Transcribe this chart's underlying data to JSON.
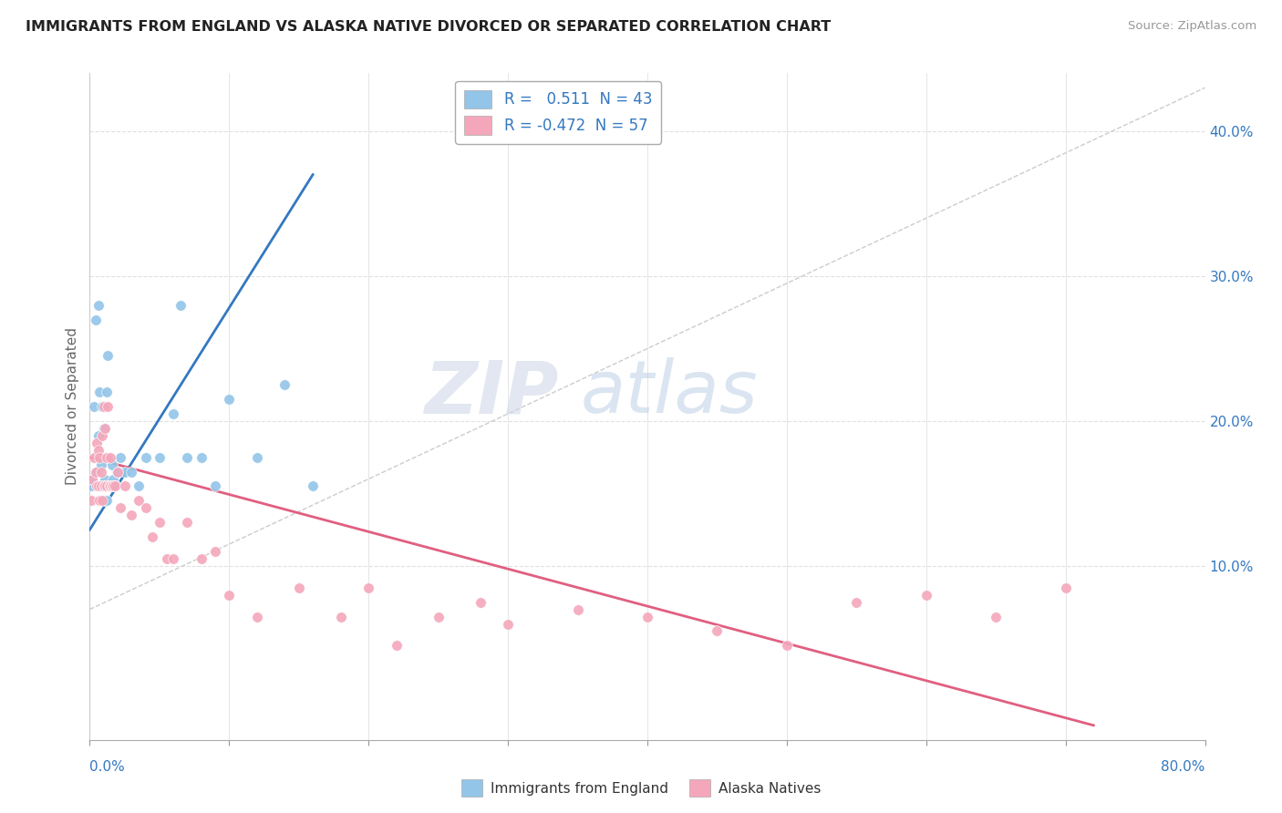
{
  "title": "IMMIGRANTS FROM ENGLAND VS ALASKA NATIVE DIVORCED OR SEPARATED CORRELATION CHART",
  "source": "Source: ZipAtlas.com",
  "ylabel": "Divorced or Separated",
  "xlim": [
    0.0,
    0.8
  ],
  "ylim": [
    -0.02,
    0.44
  ],
  "legend_r1": "R =   0.511  N = 43",
  "legend_r2": "R = -0.472  N = 57",
  "blue_color": "#92c5e8",
  "pink_color": "#f4a7bb",
  "blue_line_color": "#3478c0",
  "pink_line_color": "#e05f80",
  "watermark_zip": "ZIP",
  "watermark_atlas": "atlas",
  "blue_scatter_x": [
    0.001,
    0.002,
    0.003,
    0.004,
    0.005,
    0.006,
    0.006,
    0.007,
    0.007,
    0.008,
    0.008,
    0.009,
    0.009,
    0.01,
    0.01,
    0.011,
    0.011,
    0.012,
    0.012,
    0.013,
    0.013,
    0.014,
    0.015,
    0.016,
    0.017,
    0.018,
    0.019,
    0.02,
    0.022,
    0.025,
    0.03,
    0.035,
    0.04,
    0.05,
    0.06,
    0.065,
    0.07,
    0.08,
    0.09,
    0.1,
    0.12,
    0.14,
    0.16
  ],
  "blue_scatter_y": [
    0.155,
    0.16,
    0.21,
    0.27,
    0.165,
    0.19,
    0.28,
    0.155,
    0.22,
    0.155,
    0.17,
    0.155,
    0.21,
    0.155,
    0.195,
    0.145,
    0.16,
    0.145,
    0.22,
    0.155,
    0.245,
    0.155,
    0.155,
    0.17,
    0.16,
    0.155,
    0.155,
    0.165,
    0.175,
    0.165,
    0.165,
    0.155,
    0.175,
    0.175,
    0.205,
    0.28,
    0.175,
    0.175,
    0.155,
    0.215,
    0.175,
    0.225,
    0.155
  ],
  "pink_scatter_x": [
    0.001,
    0.002,
    0.003,
    0.004,
    0.005,
    0.005,
    0.006,
    0.006,
    0.007,
    0.007,
    0.008,
    0.008,
    0.009,
    0.009,
    0.01,
    0.01,
    0.011,
    0.011,
    0.012,
    0.012,
    0.013,
    0.014,
    0.015,
    0.015,
    0.016,
    0.017,
    0.018,
    0.02,
    0.022,
    0.025,
    0.03,
    0.035,
    0.04,
    0.045,
    0.05,
    0.055,
    0.06,
    0.07,
    0.08,
    0.09,
    0.1,
    0.12,
    0.15,
    0.18,
    0.2,
    0.22,
    0.25,
    0.28,
    0.3,
    0.35,
    0.4,
    0.45,
    0.5,
    0.55,
    0.6,
    0.65,
    0.7
  ],
  "pink_scatter_y": [
    0.145,
    0.16,
    0.175,
    0.165,
    0.155,
    0.185,
    0.155,
    0.18,
    0.145,
    0.175,
    0.155,
    0.165,
    0.145,
    0.19,
    0.155,
    0.21,
    0.155,
    0.195,
    0.155,
    0.175,
    0.21,
    0.155,
    0.155,
    0.175,
    0.155,
    0.155,
    0.155,
    0.165,
    0.14,
    0.155,
    0.135,
    0.145,
    0.14,
    0.12,
    0.13,
    0.105,
    0.105,
    0.13,
    0.105,
    0.11,
    0.08,
    0.065,
    0.085,
    0.065,
    0.085,
    0.045,
    0.065,
    0.075,
    0.06,
    0.07,
    0.065,
    0.055,
    0.045,
    0.075,
    0.08,
    0.065,
    0.085
  ],
  "blue_trend_x": [
    0.0,
    0.16
  ],
  "blue_trend_y": [
    0.125,
    0.37
  ],
  "pink_trend_x": [
    0.0,
    0.72
  ],
  "pink_trend_y": [
    0.175,
    -0.01
  ],
  "diag_line_x": [
    0.0,
    0.8
  ],
  "diag_line_y": [
    0.07,
    0.43
  ],
  "ytick_positions": [
    0.1,
    0.2,
    0.3,
    0.4
  ],
  "ytick_labels": [
    "10.0%",
    "20.0%",
    "30.0%",
    "40.0%"
  ],
  "background_color": "#ffffff",
  "grid_color": "#e0e0e0"
}
